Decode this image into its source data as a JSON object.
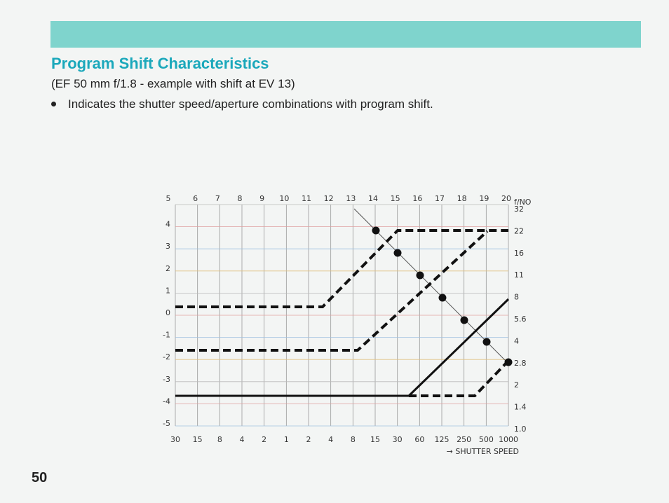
{
  "page": {
    "title": "Program Shift Characteristics",
    "subtitle": "(EF 50 mm f/1.8 - example with shift at EV 13)",
    "bullet": "Indicates the shutter speed/aperture combinations with program shift.",
    "number": "50"
  },
  "diagram": {
    "ev_labels": [
      "5",
      "6",
      "7",
      "8",
      "9",
      "10",
      "11",
      "12",
      "13",
      "14",
      "15",
      "16",
      "17",
      "18",
      "19",
      "20"
    ],
    "fno_title": "f/NO",
    "left_labels": [
      "4",
      "3",
      "2",
      "1",
      "0",
      "-1",
      "-2",
      "-3",
      "-4",
      "-5"
    ],
    "fno_labels": [
      "32",
      "22",
      "16",
      "11",
      "8",
      "5.6",
      "4",
      "2.8",
      "2",
      "1.4",
      "1.0"
    ],
    "shutter_labels": [
      "30",
      "15",
      "8",
      "4",
      "2",
      "1",
      "2",
      "4",
      "8",
      "15",
      "30",
      "60",
      "125",
      "250",
      "500",
      "1000"
    ],
    "shutter_title": "→ SHUTTER SPEED"
  }
}
